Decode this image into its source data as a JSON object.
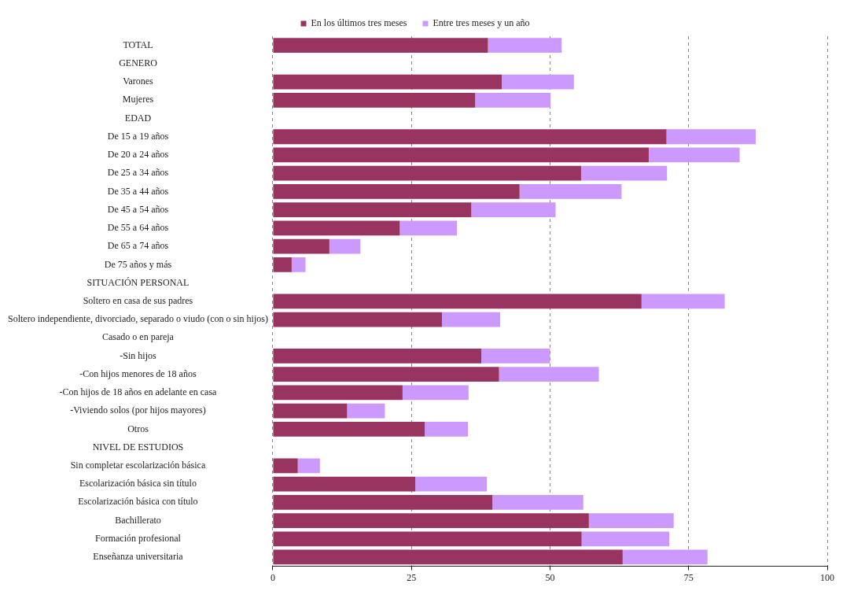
{
  "chart_data": {
    "type": "bar",
    "orientation": "horizontal",
    "stacked": true,
    "categories": [
      "TOTAL",
      "GENERO",
      "Varones",
      "Mujeres",
      "EDAD",
      "De 15 a 19 años",
      "De 20 a 24 años",
      "De 25 a 34 años",
      "De 35 a 44 años",
      "De 45 a 54 años",
      "De 55 a 64 años",
      "De 65 a 74 años",
      "De 75 años y más",
      "SITUACIÓN PERSONAL",
      "Soltero en casa de sus padres",
      "Soltero independiente, divorciado, separado o viudo (con o sin hijos)",
      "Casado o en pareja",
      "-Sin hijos",
      "-Con hijos menores de 18 años",
      "-Con hijos de 18 años en adelante en casa",
      "-Viviendo solos (por hijos mayores)",
      "Otros",
      "NIVEL DE ESTUDIOS",
      "Sin completar escolarización básica",
      "Escolarización básica sin título",
      "Escolarización básica con título",
      "Bachillerato",
      "Formación profesional",
      "Enseñanza universitaria"
    ],
    "series": [
      {
        "name": "En los últimos tres meses",
        "color": "#993360",
        "values": [
          38.8,
          null,
          41.3,
          36.5,
          null,
          71.0,
          67.8,
          55.6,
          44.5,
          35.8,
          22.9,
          10.2,
          3.4,
          null,
          66.5,
          30.5,
          null,
          37.6,
          40.8,
          23.4,
          13.4,
          27.4,
          null,
          4.5,
          25.7,
          39.6,
          57.0,
          55.7,
          63.1
        ]
      },
      {
        "name": "Entre tres meses y un año",
        "color": "#cc99ff",
        "values": [
          13.3,
          null,
          13.0,
          13.6,
          null,
          16.1,
          16.4,
          15.5,
          18.4,
          15.2,
          10.3,
          5.6,
          2.5,
          null,
          15.0,
          10.5,
          null,
          12.4,
          18.0,
          11.9,
          6.8,
          7.8,
          null,
          4.0,
          12.9,
          16.4,
          15.3,
          15.8,
          15.3
        ]
      }
    ],
    "xlim": [
      0,
      100
    ],
    "xticks": [
      0,
      25,
      50,
      75,
      100
    ],
    "grid": "x",
    "legend": "top"
  }
}
